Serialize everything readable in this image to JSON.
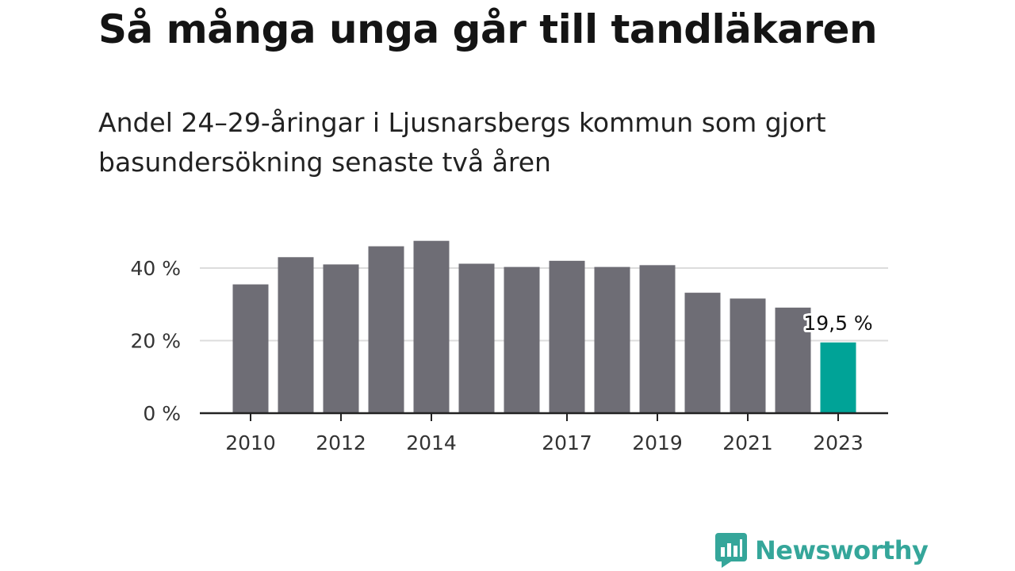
{
  "header": {
    "title": "Så många unga går till tandläkaren",
    "subtitle": "Andel 24–29-åringar i Ljusnarsbergs kommun som gjort basundersökning senaste två åren"
  },
  "chart_data": {
    "type": "bar",
    "categories": [
      "2010",
      "2011",
      "2012",
      "2013",
      "2014",
      "2015",
      "2016",
      "2017",
      "2018",
      "2019",
      "2020",
      "2021",
      "2022",
      "2023"
    ],
    "values": [
      35.5,
      43,
      41,
      46,
      47.5,
      41.2,
      40.3,
      42,
      40.3,
      40.8,
      33.2,
      31.6,
      29.1,
      19.5
    ],
    "x_tick_labels": [
      "2010",
      "2012",
      "2014",
      "2017",
      "2019",
      "2021",
      "2023"
    ],
    "y_ticks": [
      0,
      20,
      40
    ],
    "y_tick_labels": [
      "0 %",
      "20 %",
      "40 %"
    ],
    "ylim": [
      0,
      50
    ],
    "grid": true,
    "highlight": {
      "index": 13,
      "label": "19,5 %",
      "color": "#00a397"
    },
    "bar_color": "#6e6d75",
    "axis_color": "#222222",
    "grid_color": "#dcdcdc"
  },
  "branding": {
    "logo_text": "Newsworthy",
    "logo_color": "#35a69a",
    "logo_icon": "bar-chart-speech-bubble-icon"
  }
}
